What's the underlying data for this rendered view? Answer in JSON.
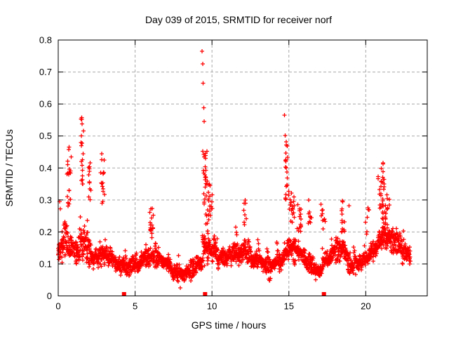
{
  "chart_data": {
    "type": "scatter",
    "title": "Day 039 of 2015, SRMTID for receiver norf",
    "xlabel": "GPS time / hours",
    "ylabel": "SRMTID / TECUs",
    "xlim": [
      0,
      24
    ],
    "ylim": [
      0,
      0.8
    ],
    "xticks": [
      {
        "v": 0,
        "label": "0"
      },
      {
        "v": 5,
        "label": "5"
      },
      {
        "v": 10,
        "label": "10"
      },
      {
        "v": 15,
        "label": "15"
      },
      {
        "v": 20,
        "label": "20"
      }
    ],
    "yticks": [
      {
        "v": 0,
        "label": "0"
      },
      {
        "v": 0.1,
        "label": "0.1"
      },
      {
        "v": 0.2,
        "label": "0.2"
      },
      {
        "v": 0.3,
        "label": "0.3"
      },
      {
        "v": 0.4,
        "label": "0.4"
      },
      {
        "v": 0.5,
        "label": "0.5"
      },
      {
        "v": 0.6,
        "label": "0.6"
      },
      {
        "v": 0.7,
        "label": "0.7"
      },
      {
        "v": 0.8,
        "label": "0.8"
      }
    ],
    "grid": true,
    "legend": "none",
    "marker": "plus",
    "colors": {
      "marker": "#ff0000",
      "grid": "#a8a8a8",
      "axis": "#000000",
      "background": "#ffffff",
      "text": "#000000"
    },
    "event_marker": {
      "shape": "filled-square",
      "y": 0,
      "x": [
        4.28,
        9.55,
        17.28
      ]
    },
    "band_envelope_t_lo_hi": [
      [
        0.0,
        0.07,
        0.23
      ],
      [
        0.3,
        0.08,
        0.3
      ],
      [
        0.7,
        0.08,
        0.28
      ],
      [
        1.0,
        0.08,
        0.22
      ],
      [
        1.5,
        0.09,
        0.26
      ],
      [
        2.0,
        0.08,
        0.24
      ],
      [
        2.5,
        0.07,
        0.2
      ],
      [
        3.0,
        0.07,
        0.22
      ],
      [
        3.5,
        0.06,
        0.18
      ],
      [
        4.0,
        0.055,
        0.17
      ],
      [
        4.5,
        0.05,
        0.15
      ],
      [
        5.0,
        0.06,
        0.16
      ],
      [
        5.5,
        0.065,
        0.18
      ],
      [
        6.0,
        0.08,
        0.23
      ],
      [
        6.4,
        0.07,
        0.19
      ],
      [
        6.8,
        0.055,
        0.17
      ],
      [
        7.2,
        0.05,
        0.15
      ],
      [
        7.6,
        0.04,
        0.14
      ],
      [
        8.0,
        0.03,
        0.12
      ],
      [
        8.4,
        0.04,
        0.14
      ],
      [
        8.8,
        0.05,
        0.17
      ],
      [
        9.2,
        0.07,
        0.2
      ],
      [
        9.6,
        0.09,
        0.26
      ],
      [
        10.0,
        0.09,
        0.24
      ],
      [
        10.4,
        0.08,
        0.21
      ],
      [
        10.8,
        0.07,
        0.19
      ],
      [
        11.2,
        0.08,
        0.2
      ],
      [
        11.6,
        0.08,
        0.22
      ],
      [
        12.0,
        0.09,
        0.23
      ],
      [
        12.4,
        0.08,
        0.2
      ],
      [
        12.8,
        0.07,
        0.18
      ],
      [
        13.2,
        0.06,
        0.17
      ],
      [
        13.6,
        0.05,
        0.15
      ],
      [
        14.0,
        0.06,
        0.17
      ],
      [
        14.4,
        0.07,
        0.19
      ],
      [
        14.8,
        0.09,
        0.22
      ],
      [
        15.2,
        0.1,
        0.24
      ],
      [
        15.6,
        0.09,
        0.22
      ],
      [
        16.0,
        0.07,
        0.19
      ],
      [
        16.4,
        0.05,
        0.15
      ],
      [
        16.8,
        0.04,
        0.13
      ],
      [
        17.2,
        0.06,
        0.16
      ],
      [
        17.6,
        0.08,
        0.19
      ],
      [
        18.0,
        0.09,
        0.21
      ],
      [
        18.4,
        0.1,
        0.23
      ],
      [
        18.8,
        0.07,
        0.18
      ],
      [
        19.2,
        0.05,
        0.16
      ],
      [
        19.6,
        0.06,
        0.16
      ],
      [
        20.0,
        0.07,
        0.19
      ],
      [
        20.4,
        0.09,
        0.22
      ],
      [
        20.8,
        0.12,
        0.26
      ],
      [
        21.2,
        0.13,
        0.28
      ],
      [
        21.6,
        0.12,
        0.26
      ],
      [
        22.0,
        0.11,
        0.24
      ],
      [
        22.4,
        0.1,
        0.22
      ],
      [
        22.9,
        0.08,
        0.17
      ]
    ],
    "spike_clusters_t_dt_ylo_yhi_n": [
      [
        0.7,
        0.15,
        0.28,
        0.47,
        22
      ],
      [
        1.55,
        0.08,
        0.33,
        0.56,
        16
      ],
      [
        2.05,
        0.08,
        0.28,
        0.44,
        12
      ],
      [
        2.9,
        0.12,
        0.28,
        0.46,
        16
      ],
      [
        6.05,
        0.12,
        0.18,
        0.31,
        16
      ],
      [
        9.55,
        0.12,
        0.28,
        0.46,
        24
      ],
      [
        9.85,
        0.15,
        0.22,
        0.36,
        18
      ],
      [
        12.15,
        0.08,
        0.22,
        0.3,
        7
      ],
      [
        14.85,
        0.08,
        0.3,
        0.5,
        18
      ],
      [
        15.15,
        0.18,
        0.23,
        0.33,
        20
      ],
      [
        15.7,
        0.15,
        0.2,
        0.3,
        14
      ],
      [
        16.35,
        0.12,
        0.22,
        0.29,
        8
      ],
      [
        17.25,
        0.08,
        0.2,
        0.29,
        8
      ],
      [
        18.5,
        0.1,
        0.2,
        0.3,
        14
      ],
      [
        20.1,
        0.1,
        0.19,
        0.28,
        7
      ],
      [
        21.0,
        0.2,
        0.24,
        0.42,
        30
      ],
      [
        21.4,
        0.25,
        0.2,
        0.34,
        22
      ]
    ],
    "outlier_points": [
      [
        9.35,
        0.765
      ],
      [
        9.39,
        0.725
      ],
      [
        9.43,
        0.665
      ],
      [
        9.46,
        0.588
      ],
      [
        9.5,
        0.545
      ],
      [
        9.41,
        0.452
      ],
      [
        14.72,
        0.565
      ],
      [
        14.77,
        0.502
      ],
      [
        14.83,
        0.472
      ],
      [
        1.52,
        0.558
      ],
      [
        1.56,
        0.538
      ],
      [
        1.5,
        0.5
      ],
      [
        16.3,
        0.3
      ],
      [
        16.34,
        0.262
      ],
      [
        17.08,
        0.286
      ],
      [
        17.12,
        0.25
      ],
      [
        12.15,
        0.3
      ],
      [
        18.92,
        0.282
      ],
      [
        7.95,
        0.025
      ],
      [
        0.08,
        0.295
      ],
      [
        0.13,
        0.272
      ]
    ],
    "gen": {
      "walks": 3,
      "dt": 0.0283,
      "t_end": 22.9,
      "persistence": 0.72,
      "center_frac": 0.38,
      "noise": 0.26,
      "jump_p": 0.03,
      "seed": 2015039
    }
  }
}
